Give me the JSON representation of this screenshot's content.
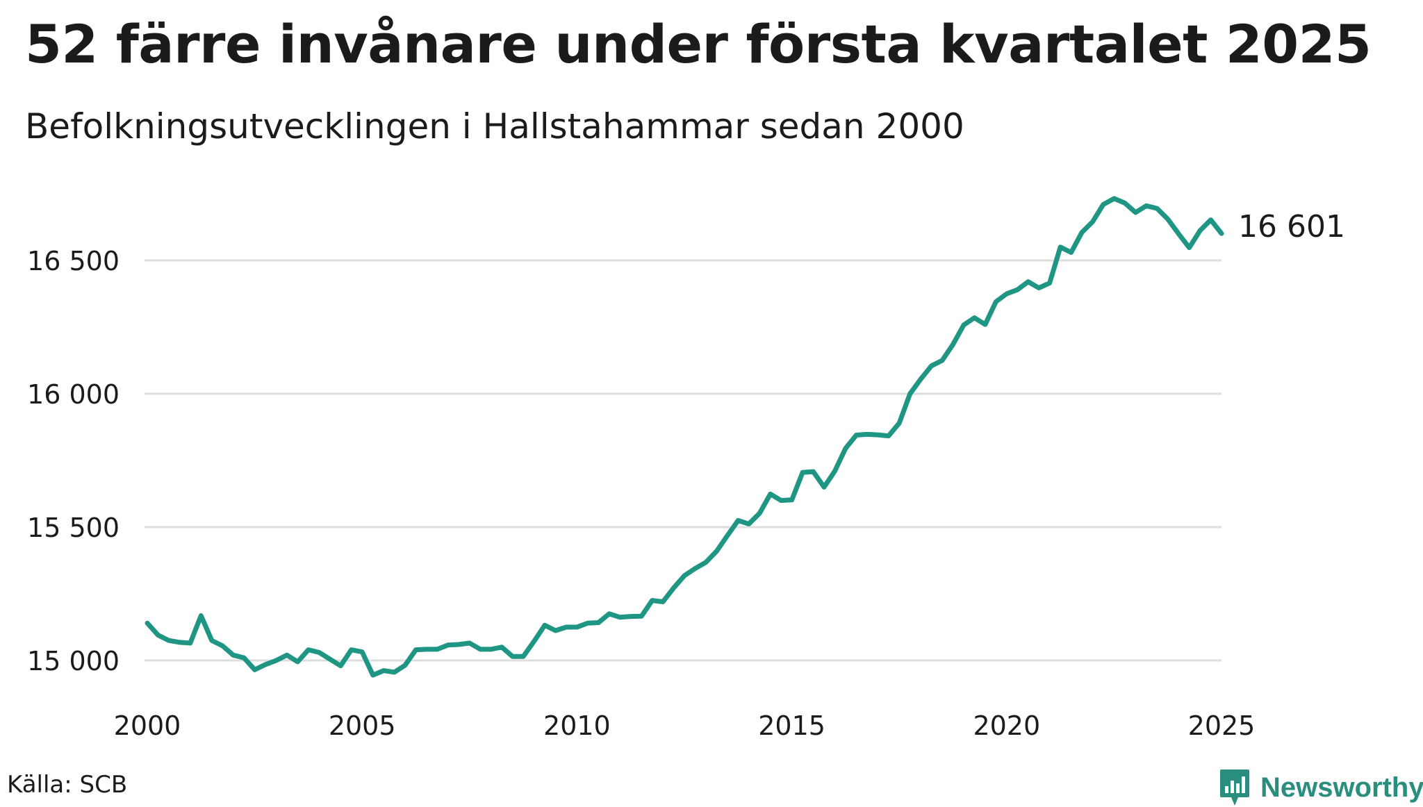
{
  "title": "52 färre invånare under första kvartalet 2025",
  "subtitle": "Befolkningsutvecklingen i Hallstahammar sedan 2000",
  "source": "Källa: SCB",
  "brand": {
    "name": "Newsworthy",
    "icon": "bar-chart-logo-icon",
    "color": "#2a8e7f"
  },
  "chart_data": {
    "type": "line",
    "title": "52 färre invånare under första kvartalet 2025",
    "subtitle": "Befolkningsutvecklingen i Hallstahammar sedan 2000",
    "xlabel": "",
    "ylabel": "",
    "xlim": [
      2000,
      2025
    ],
    "ylim": [
      14900,
      16800
    ],
    "x_ticks": [
      2000,
      2005,
      2010,
      2015,
      2020,
      2025
    ],
    "x_tick_labels": [
      "2000",
      "2005",
      "2010",
      "2015",
      "2020",
      "2025"
    ],
    "y_ticks": [
      15000,
      15500,
      16000,
      16500
    ],
    "y_tick_labels": [
      "15 000",
      "15 500",
      "16 000",
      "16 500"
    ],
    "grid": "horizontal",
    "line_color": "#1e9683",
    "end_label": "16 601",
    "series": [
      {
        "x": [
          2000.0,
          2000.25,
          2000.5,
          2000.75,
          2001.0,
          2001.25,
          2001.5,
          2001.75,
          2002.0,
          2002.25,
          2002.5,
          2002.75,
          2003.0,
          2003.25,
          2003.5,
          2003.75,
          2004.0,
          2004.25,
          2004.5,
          2004.75,
          2005.0,
          2005.25,
          2005.5,
          2005.75,
          2006.0,
          2006.25,
          2006.5,
          2006.75,
          2007.0,
          2007.25,
          2007.5,
          2007.75,
          2008.0,
          2008.25,
          2008.5,
          2008.75,
          2009.0,
          2009.25,
          2009.5,
          2009.75,
          2010.0,
          2010.25,
          2010.5,
          2010.75,
          2011.0,
          2011.25,
          2011.5,
          2011.75,
          2012.0,
          2012.25,
          2012.5,
          2012.75,
          2013.0,
          2013.25,
          2013.5,
          2013.75,
          2014.0,
          2014.25,
          2014.5,
          2014.75,
          2015.0,
          2015.25,
          2015.5,
          2015.75,
          2016.0,
          2016.25,
          2016.5,
          2016.75,
          2017.0,
          2017.25,
          2017.5,
          2017.75,
          2018.0,
          2018.25,
          2018.5,
          2018.75,
          2019.0,
          2019.25,
          2019.5,
          2019.75,
          2020.0,
          2020.25,
          2020.5,
          2020.75,
          2021.0,
          2021.25,
          2021.5,
          2021.75,
          2022.0,
          2022.25,
          2022.5,
          2022.75,
          2023.0,
          2023.25,
          2023.5,
          2023.75,
          2024.0,
          2024.25,
          2024.5,
          2024.75,
          2025.0
        ],
        "values": [
          15140,
          15095,
          15075,
          15068,
          15065,
          15168,
          15075,
          15055,
          15020,
          15010,
          14965,
          14985,
          15000,
          15020,
          14995,
          15040,
          15030,
          15005,
          14980,
          15040,
          15032,
          14945,
          14962,
          14956,
          14982,
          15040,
          15042,
          15042,
          15058,
          15060,
          15065,
          15042,
          15042,
          15050,
          15015,
          15015,
          15072,
          15132,
          15112,
          15125,
          15125,
          15140,
          15142,
          15175,
          15162,
          15165,
          15166,
          15225,
          15220,
          15272,
          15318,
          15345,
          15368,
          15410,
          15468,
          15525,
          15512,
          15552,
          15624,
          15600,
          15602,
          15705,
          15708,
          15650,
          15710,
          15795,
          15845,
          15848,
          15846,
          15842,
          15890,
          16000,
          16055,
          16105,
          16125,
          16185,
          16258,
          16285,
          16260,
          16345,
          16375,
          16390,
          16420,
          16397,
          16415,
          16550,
          16530,
          16605,
          16645,
          16710,
          16732,
          16715,
          16680,
          16705,
          16695,
          16655,
          16600,
          16548,
          16612,
          16652,
          16601
        ]
      }
    ]
  }
}
